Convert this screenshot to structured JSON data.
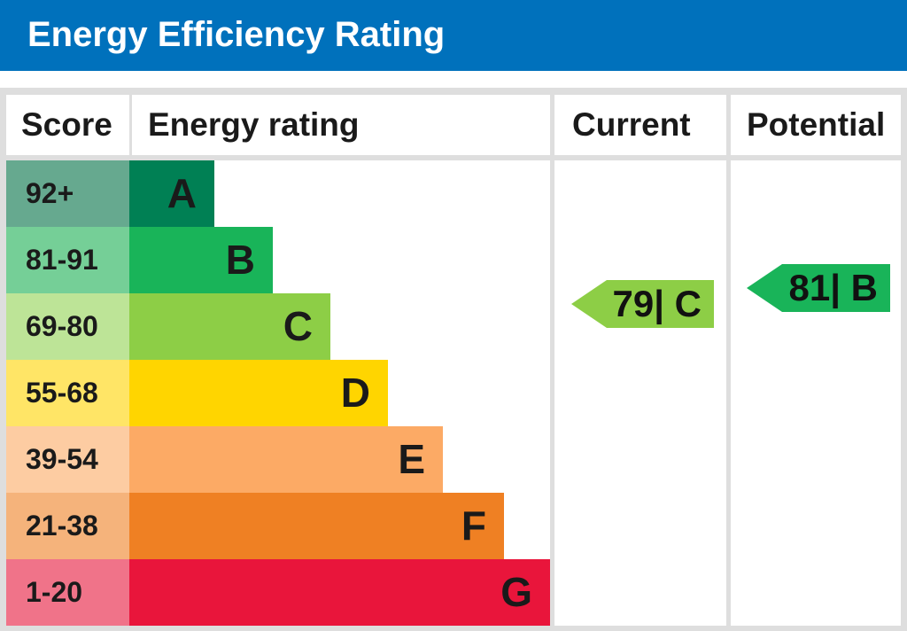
{
  "header": {
    "title": "Energy Efficiency Rating"
  },
  "columns": {
    "score": "Score",
    "energy_rating": "Energy rating",
    "current": "Current",
    "potential": "Potential"
  },
  "chart_data": {
    "type": "bar",
    "title": "Energy Efficiency Rating",
    "bands": [
      {
        "score": "92+",
        "label": "A",
        "bar_color": "#008054",
        "score_color": "#66a98f"
      },
      {
        "score": "81-91",
        "label": "B",
        "bar_color": "#19b459",
        "score_color": "#75cf97"
      },
      {
        "score": "69-80",
        "label": "C",
        "bar_color": "#8dce46",
        "score_color": "#bde497"
      },
      {
        "score": "55-68",
        "label": "D",
        "bar_color": "#ffd500",
        "score_color": "#ffe566"
      },
      {
        "score": "39-54",
        "label": "E",
        "bar_color": "#fcaa65",
        "score_color": "#fdcca2"
      },
      {
        "score": "21-38",
        "label": "F",
        "bar_color": "#ef8023",
        "score_color": "#f5b37b"
      },
      {
        "score": "1-20",
        "label": "G",
        "bar_color": "#e9153b",
        "score_color": "#f07389"
      }
    ],
    "current": {
      "value": 79,
      "band": "C",
      "text": "79| C",
      "color": "#8dce46"
    },
    "potential": {
      "value": 81,
      "band": "B",
      "text": "81| B",
      "color": "#19b459"
    }
  }
}
